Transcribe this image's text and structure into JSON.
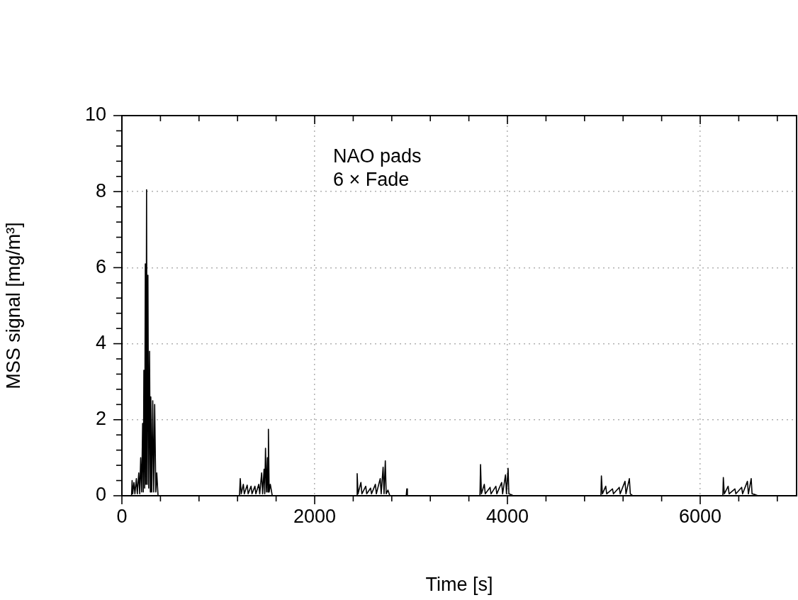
{
  "chart_data": {
    "type": "line",
    "xlabel": "Time [s]",
    "ylabel": "MSS signal [mg/m³]",
    "annotations": [
      "NAO pads",
      "6 × Fade"
    ],
    "xlim": [
      0,
      7000
    ],
    "ylim": [
      0,
      10
    ],
    "xticks": [
      0,
      {
        "value": 400,
        "label": null
      },
      {
        "value": 800,
        "label": null
      },
      {
        "value": 1200,
        "label": null
      },
      {
        "value": 1600,
        "label": null
      },
      2000,
      {
        "value": 2400,
        "label": null
      },
      {
        "value": 2800,
        "label": null
      },
      {
        "value": 3200,
        "label": null
      },
      {
        "value": 3600,
        "label": null
      },
      4000,
      {
        "value": 4400,
        "label": null
      },
      {
        "value": 4800,
        "label": null
      },
      {
        "value": 5200,
        "label": null
      },
      {
        "value": 5600,
        "label": null
      },
      6000,
      {
        "value": 6400,
        "label": null
      },
      {
        "value": 6800,
        "label": null
      }
    ],
    "yticks": [
      0,
      {
        "value": 0.4,
        "label": null
      },
      {
        "value": 0.8,
        "label": null
      },
      {
        "value": 1.2,
        "label": null
      },
      {
        "value": 1.6,
        "label": null
      },
      2,
      {
        "value": 2.4,
        "label": null
      },
      {
        "value": 2.8,
        "label": null
      },
      {
        "value": 3.2,
        "label": null
      },
      {
        "value": 3.6,
        "label": null
      },
      4,
      {
        "value": 4.4,
        "label": null
      },
      {
        "value": 4.8,
        "label": null
      },
      {
        "value": 5.2,
        "label": null
      },
      {
        "value": 5.6,
        "label": null
      },
      6,
      {
        "value": 6.4,
        "label": null
      },
      {
        "value": 6.8,
        "label": null
      },
      {
        "value": 7.2,
        "label": null
      },
      {
        "value": 7.6,
        "label": null
      },
      8,
      {
        "value": 8.4,
        "label": null
      },
      {
        "value": 8.8,
        "label": null
      },
      {
        "value": 9.2,
        "label": null
      },
      {
        "value": 9.6,
        "label": null
      },
      10
    ],
    "grid": true,
    "legend": false,
    "marker": "none",
    "line_style": "solid",
    "series": [
      {
        "color": "#000000",
        "x": [
          0,
          100,
          106,
          112,
          125,
          135,
          150,
          160,
          175,
          185,
          195,
          205,
          215,
          222,
          228,
          236,
          243,
          249,
          256,
          262,
          270,
          278,
          287,
          295,
          300,
          310,
          320,
          330,
          340,
          352,
          362,
          375,
          1220,
          1228,
          1238,
          1260,
          1270,
          1300,
          1310,
          1340,
          1350,
          1380,
          1390,
          1420,
          1430,
          1450,
          1460,
          1475,
          1482,
          1490,
          1500,
          1510,
          1515,
          1520,
          1528,
          1540,
          1560,
          2435,
          2441,
          2450,
          2480,
          2490,
          2530,
          2540,
          2580,
          2590,
          2630,
          2640,
          2680,
          2690,
          2710,
          2720,
          2733,
          2742,
          2760,
          2780,
          2950,
          2956,
          2962,
          3715,
          3721,
          3730,
          3760,
          3770,
          3820,
          3830,
          3880,
          3890,
          3940,
          3950,
          3980,
          3990,
          4007,
          4015,
          4040,
          4060,
          4970,
          4975,
          4985,
          5020,
          5030,
          5090,
          5100,
          5160,
          5170,
          5220,
          5230,
          5265,
          5275,
          5300,
          6235,
          6240,
          6250,
          6290,
          6300,
          6360,
          6370,
          6430,
          6440,
          6490,
          6500,
          6529,
          6538,
          6570,
          6600,
          7000
        ],
        "values": [
          0,
          0,
          0.4,
          0.05,
          0.35,
          0.05,
          0.45,
          0.05,
          0.6,
          0.05,
          1.0,
          0.1,
          1.9,
          0.1,
          3.3,
          0.2,
          6.1,
          0.3,
          8.05,
          0.3,
          5.8,
          0.2,
          3.8,
          0.1,
          2.6,
          0.1,
          2.5,
          0.1,
          2.4,
          0.1,
          0.6,
          0,
          0,
          0.45,
          0.05,
          0.3,
          0.05,
          0.28,
          0.05,
          0.25,
          0.05,
          0.25,
          0.05,
          0.3,
          0.05,
          0.6,
          0.05,
          0.7,
          0.05,
          1.25,
          0.1,
          1.0,
          0.1,
          1.75,
          0.1,
          0.3,
          0,
          0,
          0.58,
          0.05,
          0.35,
          0.05,
          0.25,
          0.05,
          0.2,
          0.05,
          0.3,
          0.05,
          0.45,
          0.05,
          0.75,
          0.05,
          0.92,
          0.05,
          0.15,
          0,
          0,
          0.18,
          0,
          0,
          0.82,
          0.05,
          0.3,
          0.05,
          0.22,
          0.05,
          0.25,
          0.05,
          0.35,
          0.05,
          0.55,
          0.05,
          0.72,
          0.05,
          0.03,
          0,
          0,
          0.52,
          0.05,
          0.25,
          0.05,
          0.18,
          0.05,
          0.22,
          0.05,
          0.38,
          0.05,
          0.45,
          0.05,
          0,
          0,
          0.48,
          0.05,
          0.25,
          0.05,
          0.18,
          0.05,
          0.22,
          0.05,
          0.38,
          0.05,
          0.45,
          0.05,
          0.03,
          0,
          0
        ]
      }
    ]
  }
}
